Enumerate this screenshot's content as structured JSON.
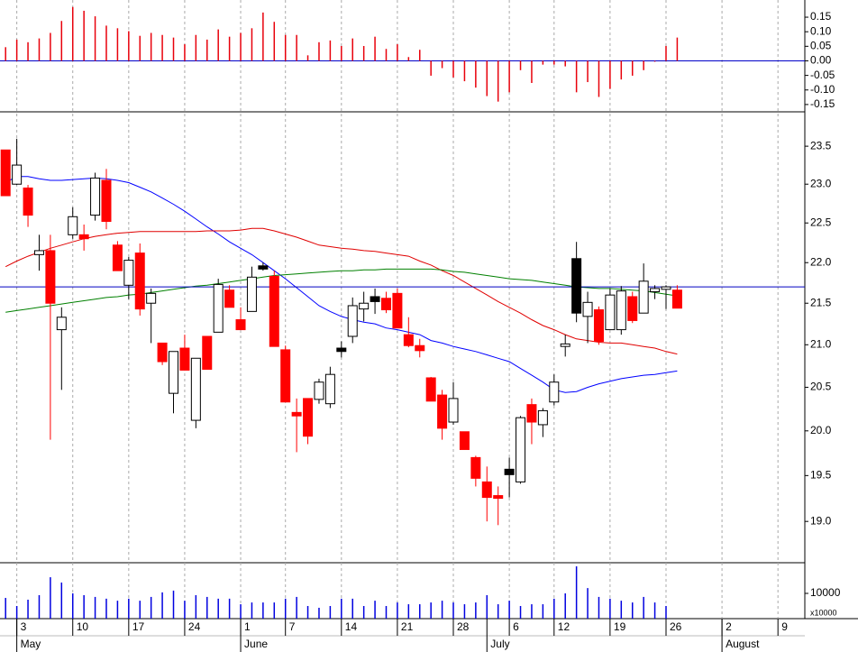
{
  "chart_data": [
    {
      "type": "bar",
      "color": "#e8000b",
      "baseline_color": "#0000c8",
      "values": [
        0.047,
        0.073,
        0.064,
        0.077,
        0.096,
        0.137,
        0.185,
        0.172,
        0.153,
        0.121,
        0.112,
        0.102,
        0.086,
        0.096,
        0.089,
        0.08,
        0.057,
        0.089,
        0.073,
        0.108,
        0.083,
        0.096,
        0.112,
        0.166,
        0.134,
        0.089,
        0.089,
        0.019,
        0.064,
        0.07,
        0.051,
        0.077,
        0.051,
        0.083,
        0.041,
        0.057,
        0.013,
        0.038,
        -0.051,
        -0.025,
        -0.057,
        -0.07,
        -0.092,
        -0.121,
        -0.14,
        -0.108,
        -0.032,
        -0.076,
        -0.013,
        -0.013,
        -0.019,
        -0.108,
        -0.073,
        -0.124,
        -0.096,
        -0.064,
        -0.051,
        -0.032,
        -0.003,
        0.051,
        0.08
      ],
      "ylim": [
        -0.172,
        0.209
      ],
      "yticks": [
        0.15,
        {
          "value": 0.1,
          "label": "0.10"
        },
        0.05,
        {
          "value": 0,
          "label": "0.00"
        },
        -0.05,
        {
          "value": -0.1,
          "label": "-0.10"
        },
        -0.15
      ]
    },
    {
      "type": "candlestick",
      "log_scale": true,
      "grid_x": true,
      "open": [
        23.45,
        23.0,
        22.95,
        22.1,
        22.15,
        21.18,
        22.35,
        22.35,
        22.6,
        23.05,
        22.22,
        21.72,
        22.12,
        21.5,
        21.02,
        20.43,
        20.96,
        20.12,
        21.1,
        21.15,
        21.66,
        21.3,
        21.4,
        21.96,
        21.83,
        20.94,
        20.21,
        20.37,
        20.36,
        20.31,
        20.96,
        21.1,
        21.43,
        21.58,
        21.56,
        21.62,
        21.12,
        20.99,
        20.61,
        20.41,
        20.1,
        19.99,
        19.7,
        19.43,
        19.28,
        19.57,
        19.43,
        20.3,
        20.07,
        20.33,
        20.98,
        22.05,
        21.34,
        21.42,
        21.18,
        21.18,
        21.58,
        21.38,
        21.64,
        21.67,
        21.66
      ],
      "high": [
        23.45,
        23.6,
        22.99,
        22.35,
        22.35,
        21.45,
        22.7,
        22.48,
        23.15,
        23.2,
        22.27,
        22.07,
        22.24,
        21.68,
        21.02,
        20.92,
        21.12,
        20.84,
        21.1,
        21.8,
        21.72,
        21.45,
        21.95,
        22.0,
        21.9,
        20.99,
        20.37,
        20.37,
        20.6,
        20.74,
        21.04,
        21.57,
        21.64,
        21.68,
        21.64,
        21.68,
        21.33,
        21.07,
        20.62,
        20.47,
        20.56,
        19.99,
        19.72,
        19.6,
        19.38,
        19.7,
        20.17,
        20.37,
        20.26,
        20.65,
        21.12,
        22.26,
        21.64,
        21.46,
        21.68,
        21.71,
        21.64,
        21.99,
        21.72,
        21.72,
        21.72
      ],
      "low": [
        22.85,
        22.99,
        22.45,
        21.9,
        19.9,
        20.47,
        22.3,
        22.15,
        22.53,
        22.42,
        21.9,
        21.55,
        21.35,
        21.02,
        20.76,
        20.2,
        20.7,
        20.03,
        20.71,
        21.15,
        21.45,
        21.18,
        21.4,
        21.9,
        20.98,
        20.33,
        19.76,
        19.85,
        20.31,
        20.26,
        20.85,
        21.02,
        21.28,
        21.37,
        21.38,
        21.2,
        20.97,
        20.85,
        20.34,
        19.9,
        20.07,
        19.79,
        19.38,
        19.0,
        18.96,
        19.26,
        19.41,
        19.85,
        19.93,
        20.29,
        20.86,
        21.27,
        21.02,
        21.0,
        21.18,
        21.12,
        21.26,
        21.38,
        21.55,
        21.43,
        21.44
      ],
      "close": [
        22.85,
        23.25,
        22.6,
        22.15,
        21.5,
        21.33,
        22.58,
        22.3,
        23.08,
        22.52,
        21.9,
        22.03,
        21.43,
        21.62,
        20.8,
        20.92,
        20.7,
        20.84,
        20.71,
        21.73,
        21.45,
        21.18,
        21.82,
        21.92,
        20.98,
        20.33,
        20.17,
        19.94,
        20.56,
        20.65,
        20.92,
        21.47,
        21.5,
        21.52,
        21.42,
        21.2,
        20.99,
        20.93,
        20.34,
        20.03,
        20.37,
        19.79,
        19.47,
        19.26,
        19.25,
        19.51,
        20.15,
        20.1,
        20.23,
        20.56,
        21.01,
        21.38,
        21.51,
        21.04,
        21.6,
        21.65,
        21.29,
        21.77,
        21.68,
        21.7,
        21.44
      ],
      "candle_colors": [
        "#ff0000",
        "#ffffff",
        "#ff0000",
        "#ffffff",
        "#ff0000",
        "#ffffff",
        "#ffffff",
        "#ff0000",
        "#ffffff",
        "#ff0000",
        "#ff0000",
        "#ffffff",
        "#ff0000",
        "#ffffff",
        "#ff0000",
        "#ffffff",
        "#ff0000",
        "#ffffff",
        "#ff0000",
        "#ffffff",
        "#ff0000",
        "#ff0000",
        "#ffffff",
        "#000000",
        "#ff0000",
        "#ff0000",
        "#ff0000",
        "#ff0000",
        "#ffffff",
        "#ffffff",
        "#000000",
        "#ffffff",
        "#ffffff",
        "#000000",
        "#ff0000",
        "#ff0000",
        "#ff0000",
        "#ff0000",
        "#ff0000",
        "#ff0000",
        "#ffffff",
        "#ff0000",
        "#ff0000",
        "#ff0000",
        "#ff0000",
        "#000000",
        "#ffffff",
        "#ff0000",
        "#ffffff",
        "#ffffff",
        "#ffffff",
        "#000000",
        "#ffffff",
        "#ff0000",
        "#ffffff",
        "#ffffff",
        "#ff0000",
        "#ffffff",
        "#ffffff",
        "#ffffff",
        "#ff0000"
      ],
      "series": [
        {
          "color": "#0000ff",
          "values": [
            23.02,
            23.1,
            23.1,
            23.07,
            23.05,
            23.05,
            23.06,
            23.07,
            23.08,
            23.07,
            23.05,
            23.02,
            22.96,
            22.9,
            22.82,
            22.74,
            22.65,
            22.55,
            22.45,
            22.36,
            22.26,
            22.18,
            22.1,
            22.0,
            21.9,
            21.8,
            21.69,
            21.58,
            21.47,
            21.4,
            21.34,
            21.3,
            21.27,
            21.25,
            21.2,
            21.18,
            21.15,
            21.12,
            21.05,
            21.02,
            20.98,
            20.95,
            20.92,
            20.88,
            20.84,
            20.8,
            20.72,
            20.64,
            20.56,
            20.47,
            20.44,
            20.45,
            20.5,
            20.54,
            20.57,
            20.6,
            20.62,
            20.64,
            20.65,
            20.67,
            20.69
          ]
        },
        {
          "color": "#e00000",
          "values": [
            21.95,
            22.02,
            22.08,
            22.13,
            22.18,
            22.22,
            22.26,
            22.3,
            22.33,
            22.35,
            22.37,
            22.38,
            22.39,
            22.39,
            22.39,
            22.39,
            22.39,
            22.39,
            22.4,
            22.4,
            22.4,
            22.41,
            22.43,
            22.43,
            22.4,
            22.36,
            22.32,
            22.27,
            22.22,
            22.2,
            22.18,
            22.17,
            22.15,
            22.14,
            22.12,
            22.1,
            22.08,
            22.02,
            21.97,
            21.9,
            21.84,
            21.76,
            21.68,
            21.6,
            21.52,
            21.45,
            21.38,
            21.3,
            21.23,
            21.18,
            21.12,
            21.07,
            21.05,
            21.03,
            21.02,
            21.02,
            21.0,
            20.98,
            20.96,
            20.92,
            20.89
          ]
        },
        {
          "color": "#008000",
          "values": [
            21.39,
            21.41,
            21.43,
            21.45,
            21.47,
            21.49,
            21.51,
            21.53,
            21.55,
            21.57,
            21.58,
            21.6,
            21.61,
            21.63,
            21.65,
            21.67,
            21.69,
            21.71,
            21.72,
            21.74,
            21.76,
            21.78,
            21.8,
            21.82,
            21.84,
            21.85,
            21.86,
            21.87,
            21.88,
            21.89,
            21.9,
            21.9,
            21.91,
            21.91,
            21.92,
            21.92,
            21.92,
            21.92,
            21.92,
            21.91,
            21.89,
            21.88,
            21.86,
            21.84,
            21.82,
            21.8,
            21.79,
            21.78,
            21.76,
            21.74,
            21.72,
            21.7,
            21.69,
            21.68,
            21.68,
            21.67,
            21.66,
            21.65,
            21.63,
            21.61,
            21.59
          ]
        }
      ],
      "hline": 21.7,
      "hline_color": "#0000c0",
      "ylim": [
        18.57,
        23.95
      ],
      "yticks": [
        23.5,
        {
          "value": 23,
          "label": "23.0"
        },
        22.5,
        {
          "value": 22,
          "label": "22.0"
        },
        21.5,
        {
          "value": 21,
          "label": "21.0"
        },
        20.5,
        {
          "value": 20,
          "label": "20.0"
        },
        19.5,
        {
          "value": 19,
          "label": "19.0"
        }
      ],
      "xlim": [
        -0.5,
        71.4
      ],
      "xticks": [
        {
          "value": 1,
          "label": "3"
        },
        {
          "value": 6,
          "label": "10"
        },
        {
          "value": 11,
          "label": "17"
        },
        {
          "value": 16,
          "label": "24"
        },
        {
          "value": 21,
          "label": "1"
        },
        {
          "value": 25,
          "label": "7"
        },
        {
          "value": 30,
          "label": "14"
        },
        {
          "value": 35,
          "label": "21"
        },
        {
          "value": 40,
          "label": "28"
        },
        {
          "value": 45,
          "label": "6"
        },
        {
          "value": 49,
          "label": "12"
        },
        {
          "value": 54,
          "label": "19"
        },
        {
          "value": 59,
          "label": "26"
        },
        {
          "value": 64,
          "label": "2"
        },
        {
          "value": 69,
          "label": "9"
        }
      ],
      "month_ticks": [
        {
          "value": 1,
          "label": "May"
        },
        {
          "value": 21,
          "label": "June"
        },
        {
          "value": 43,
          "label": "July"
        },
        {
          "value": 64,
          "label": "August"
        }
      ]
    },
    {
      "type": "bar",
      "color": "#0000e0",
      "values": [
        8200,
        5000,
        7500,
        9300,
        16400,
        14300,
        10000,
        9300,
        8600,
        7900,
        7100,
        7900,
        7100,
        8600,
        10400,
        11100,
        7100,
        9300,
        8600,
        7900,
        7900,
        5700,
        6400,
        6400,
        6400,
        7900,
        8600,
        5000,
        4300,
        5000,
        7900,
        7900,
        5000,
        7100,
        5000,
        6400,
        5700,
        5700,
        6400,
        7100,
        6400,
        5700,
        6400,
        9300,
        5700,
        7100,
        5000,
        5700,
        5700,
        7900,
        10000,
        20700,
        12100,
        8600,
        7900,
        7100,
        6400,
        8600,
        6400,
        5000,
        null
      ],
      "ylim": [
        0,
        21786
      ],
      "yticks": [
        10000
      ],
      "unit_label": "x10000"
    }
  ]
}
